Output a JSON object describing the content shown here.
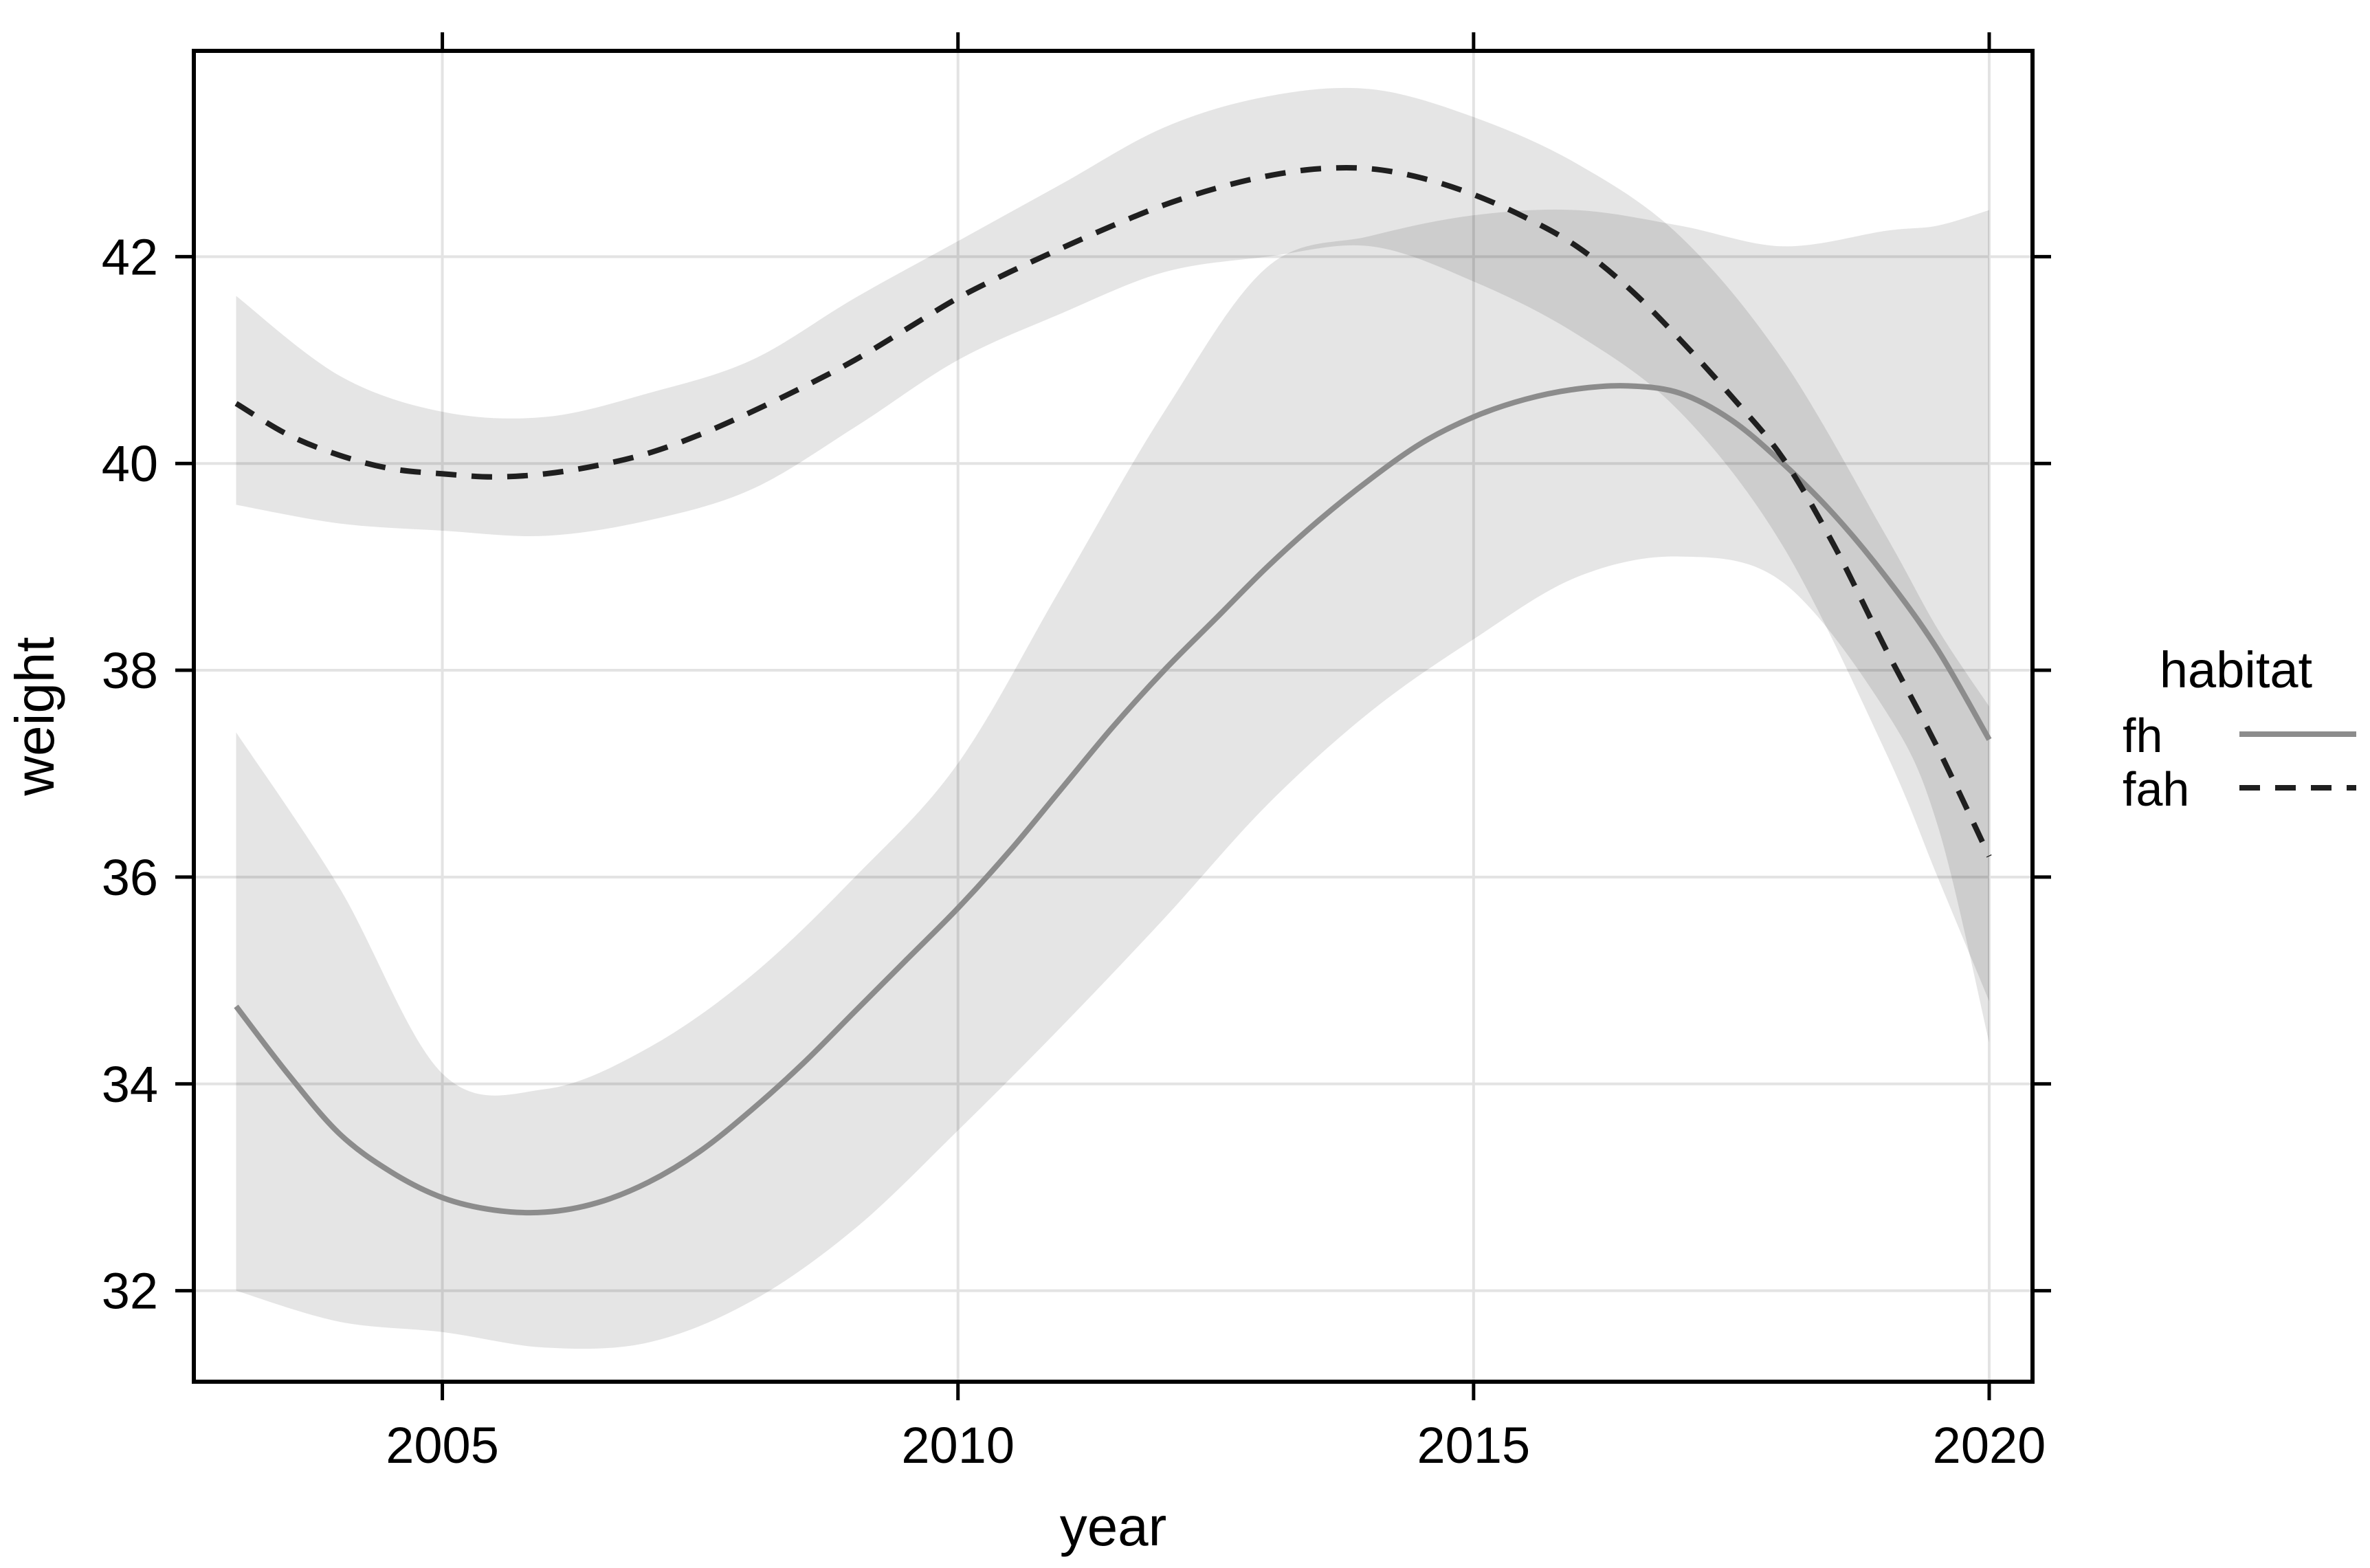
{
  "chart_data": {
    "type": "line",
    "title": "",
    "xlabel": "year",
    "ylabel": "weight",
    "xlim": [
      2002.59,
      2020.42
    ],
    "ylim": [
      31.12,
      43.99
    ],
    "grid": true,
    "background": "#ffffff",
    "grid_color": "#e3e3e3",
    "border_color": "#000000",
    "band_fill": "rgba(0,0,0,0.10)",
    "x_ticks": [
      {
        "value": 2005,
        "label": "2005"
      },
      {
        "value": 2010,
        "label": "2010"
      },
      {
        "value": 2015,
        "label": "2015"
      },
      {
        "value": 2020,
        "label": "2020"
      }
    ],
    "y_ticks": [
      {
        "value": 32,
        "label": "32"
      },
      {
        "value": 34,
        "label": "34"
      },
      {
        "value": 36,
        "label": "36"
      },
      {
        "value": 38,
        "label": "38"
      },
      {
        "value": 40,
        "label": "40"
      },
      {
        "value": 42,
        "label": "42"
      }
    ],
    "legend": {
      "title": "habitat",
      "position": "right",
      "items": [
        {
          "label": "fh",
          "style": "solid",
          "color": "#8c8c8c"
        },
        {
          "label": "fah",
          "style": "dashed",
          "color": "#1f1f1f"
        }
      ]
    },
    "series": [
      {
        "name": "fh",
        "color": "#8c8c8c",
        "style": "solid",
        "x": [
          2003,
          2003.5,
          2004,
          2004.5,
          2005,
          2005.5,
          2006,
          2006.5,
          2007,
          2007.5,
          2008,
          2008.5,
          2009,
          2009.5,
          2010,
          2010.5,
          2011,
          2011.5,
          2012,
          2012.5,
          2013,
          2013.5,
          2014,
          2014.5,
          2015,
          2015.5,
          2016,
          2016.5,
          2017,
          2017.5,
          2018,
          2018.5,
          2019,
          2019.5,
          2020
        ],
        "y": [
          34.75,
          34.1,
          33.52,
          33.15,
          32.9,
          32.78,
          32.76,
          32.85,
          33.05,
          33.35,
          33.75,
          34.2,
          34.7,
          35.2,
          35.7,
          36.25,
          36.85,
          37.45,
          38.0,
          38.5,
          39.0,
          39.45,
          39.85,
          40.2,
          40.45,
          40.62,
          40.72,
          40.75,
          40.68,
          40.42,
          40.0,
          39.5,
          38.9,
          38.2,
          37.33
        ],
        "ribbon": {
          "x": [
            2003,
            2004,
            2005,
            2006,
            2007,
            2008,
            2009,
            2010,
            2011,
            2012,
            2013,
            2014,
            2015,
            2016,
            2017,
            2018,
            2019,
            2019.5,
            2020
          ],
          "lower": [
            32.0,
            31.7,
            31.6,
            31.45,
            31.5,
            31.9,
            32.6,
            33.55,
            34.55,
            35.6,
            36.7,
            37.6,
            38.3,
            38.9,
            39.1,
            38.85,
            37.6,
            36.5,
            34.4
          ],
          "upper": [
            37.4,
            35.9,
            34.1,
            33.95,
            34.35,
            35.05,
            36.0,
            37.1,
            38.8,
            40.5,
            41.9,
            42.2,
            42.4,
            42.45,
            42.3,
            42.1,
            42.25,
            42.3,
            42.45
          ]
        }
      },
      {
        "name": "fah",
        "color": "#1f1f1f",
        "style": "dashed",
        "x": [
          2003,
          2003.5,
          2004,
          2004.5,
          2005,
          2005.5,
          2006,
          2006.5,
          2007,
          2007.5,
          2008,
          2008.5,
          2009,
          2009.5,
          2010,
          2010.5,
          2011,
          2011.5,
          2012,
          2012.5,
          2013,
          2013.5,
          2014,
          2014.5,
          2015,
          2015.5,
          2016,
          2016.5,
          2017,
          2017.5,
          2018,
          2018.5,
          2019,
          2019.5,
          2020
        ],
        "y": [
          40.58,
          40.28,
          40.08,
          39.95,
          39.9,
          39.87,
          39.9,
          39.98,
          40.1,
          40.28,
          40.5,
          40.74,
          41.0,
          41.3,
          41.6,
          41.85,
          42.08,
          42.3,
          42.5,
          42.66,
          42.78,
          42.85,
          42.85,
          42.76,
          42.6,
          42.38,
          42.1,
          41.7,
          41.2,
          40.65,
          40.05,
          39.2,
          38.2,
          37.25,
          36.2
        ],
        "ribbon": {
          "x": [
            2003,
            2004,
            2005,
            2006,
            2007,
            2008,
            2009,
            2010,
            2011,
            2012,
            2013,
            2014,
            2015,
            2016,
            2017,
            2018,
            2019,
            2019.5,
            2020
          ],
          "lower": [
            39.6,
            39.42,
            39.35,
            39.3,
            39.45,
            39.75,
            40.35,
            41.0,
            41.45,
            41.85,
            42.0,
            42.1,
            41.76,
            41.25,
            40.5,
            39.2,
            37.2,
            36.0,
            34.8
          ],
          "upper": [
            41.62,
            40.85,
            40.5,
            40.45,
            40.68,
            41.0,
            41.6,
            42.15,
            42.7,
            43.25,
            43.55,
            43.62,
            43.35,
            42.9,
            42.2,
            41.0,
            39.3,
            38.4,
            37.65
          ]
        }
      }
    ]
  }
}
